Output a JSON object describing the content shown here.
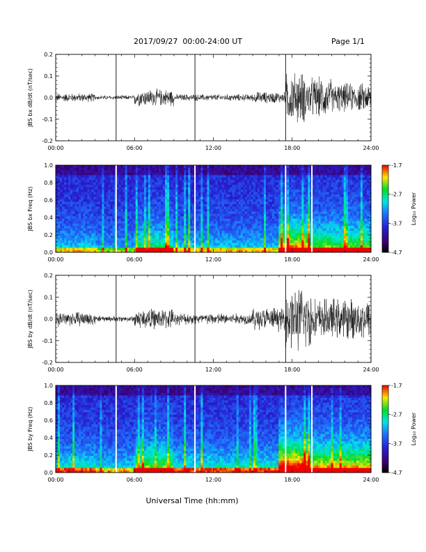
{
  "header": {
    "date_range": "2017/09/27  00:00-24:00 UT",
    "page": "Page 1/1"
  },
  "x_axis": {
    "ticks": [
      "00:00",
      "06:00",
      "12:00",
      "18:00",
      "24:00"
    ],
    "label": "Universal Time (hh:mm)"
  },
  "chart_data": [
    {
      "type": "line",
      "ylabel": "JBS bx dB/dt (nT/sec)",
      "xlim": [
        0,
        24
      ],
      "ylim": [
        -0.2,
        0.2
      ],
      "yticks": [
        "0.2",
        "0.1",
        "0.0",
        "-0.1",
        "-0.2"
      ],
      "gaps_hours": [
        4.6,
        10.6,
        17.5
      ],
      "segments": [
        {
          "x": [
            0,
            3
          ],
          "amplitude": 0.015
        },
        {
          "x": [
            3,
            6
          ],
          "amplitude": 0.008
        },
        {
          "x": [
            6,
            9
          ],
          "amplitude": 0.03
        },
        {
          "x": [
            9,
            12
          ],
          "amplitude": 0.012
        },
        {
          "x": [
            12,
            15
          ],
          "amplitude": 0.012
        },
        {
          "x": [
            15,
            17.5
          ],
          "amplitude": 0.02
        },
        {
          "x": [
            17.5,
            19
          ],
          "amplitude": 0.09
        },
        {
          "x": [
            19,
            21
          ],
          "amplitude": 0.07
        },
        {
          "x": [
            21,
            24
          ],
          "amplitude": 0.05
        }
      ]
    },
    {
      "type": "heatmap",
      "ylabel": "JBS bx Freq (Hz)",
      "xlim": [
        0,
        24
      ],
      "ylim": [
        0,
        1
      ],
      "yticks": [
        "1.0",
        "0.8",
        "0.6",
        "0.4",
        "0.2",
        "0.0"
      ],
      "colorbar": {
        "label": "Log₁₀ Power",
        "range": [
          -4.7,
          -1.7
        ],
        "ticks": [
          "-1.7",
          "-2.7",
          "-3.7",
          "-4.7"
        ]
      },
      "gaps_hours": [
        4.6,
        10.6,
        17.5,
        19.5
      ]
    },
    {
      "type": "line",
      "ylabel": "JBS by dB/dt (nT/sec)",
      "xlim": [
        0,
        24
      ],
      "ylim": [
        -0.2,
        0.2
      ],
      "yticks": [
        "0.2",
        "0.1",
        "0.0",
        "-0.1",
        "-0.2"
      ],
      "gaps_hours": [
        4.6,
        10.6,
        17.5
      ],
      "segments": [
        {
          "x": [
            0,
            3
          ],
          "amplitude": 0.025
        },
        {
          "x": [
            3,
            6
          ],
          "amplitude": 0.01
        },
        {
          "x": [
            6,
            9
          ],
          "amplitude": 0.035
        },
        {
          "x": [
            9,
            12
          ],
          "amplitude": 0.02
        },
        {
          "x": [
            12,
            15
          ],
          "amplitude": 0.02
        },
        {
          "x": [
            15,
            17.5
          ],
          "amplitude": 0.04
        },
        {
          "x": [
            17.5,
            19.5
          ],
          "amplitude": 0.11
        },
        {
          "x": [
            19.5,
            24
          ],
          "amplitude": 0.07
        }
      ]
    },
    {
      "type": "heatmap",
      "ylabel": "JBS by Freq (Hz)",
      "xlim": [
        0,
        24
      ],
      "ylim": [
        0,
        1
      ],
      "yticks": [
        "1.0",
        "0.8",
        "0.6",
        "0.4",
        "0.2",
        "0.0"
      ],
      "colorbar": {
        "label": "Log₁₀ Power",
        "range": [
          -4.7,
          -1.7
        ],
        "ticks": [
          "-1.7",
          "-2.7",
          "-3.7",
          "-4.7"
        ]
      },
      "gaps_hours": [
        4.6,
        10.6,
        17.5,
        19.5
      ]
    }
  ]
}
